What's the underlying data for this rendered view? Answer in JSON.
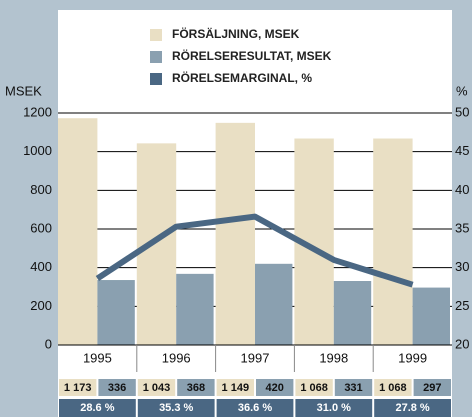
{
  "chart_data": {
    "type": "bar",
    "y_label": "MSEK",
    "y2_label": "%",
    "categories": [
      "1995",
      "1996",
      "1997",
      "1998",
      "1999"
    ],
    "series": [
      {
        "name": "FÖRSÄLJNING, MSEK",
        "type": "bar",
        "color": "#e9dfc4",
        "values": [
          1173,
          1043,
          1149,
          1068,
          1068
        ],
        "value_labels": [
          "1 173",
          "1 043",
          "1 149",
          "1 068",
          "1 068"
        ]
      },
      {
        "name": "RÖRELSERESULTAT, MSEK",
        "type": "bar",
        "color": "#8aa0b0",
        "values": [
          336,
          368,
          420,
          331,
          297
        ]
      },
      {
        "name": "RÖRELSEMARGINAL, %",
        "type": "line",
        "axis": "y2",
        "color": "#4a6783",
        "values": [
          28.6,
          35.3,
          36.6,
          31.0,
          27.8
        ],
        "value_labels": [
          "28.6 %",
          "35.3 %",
          "36.6 %",
          "31.0 %",
          "27.8 %"
        ]
      }
    ],
    "ylim": [
      0,
      1200
    ],
    "yticks": [
      0,
      200,
      400,
      600,
      800,
      1000,
      1200
    ],
    "y2lim": [
      20,
      50
    ],
    "y2ticks": [
      20,
      25,
      30,
      35,
      40,
      45,
      50
    ],
    "grid": true
  }
}
